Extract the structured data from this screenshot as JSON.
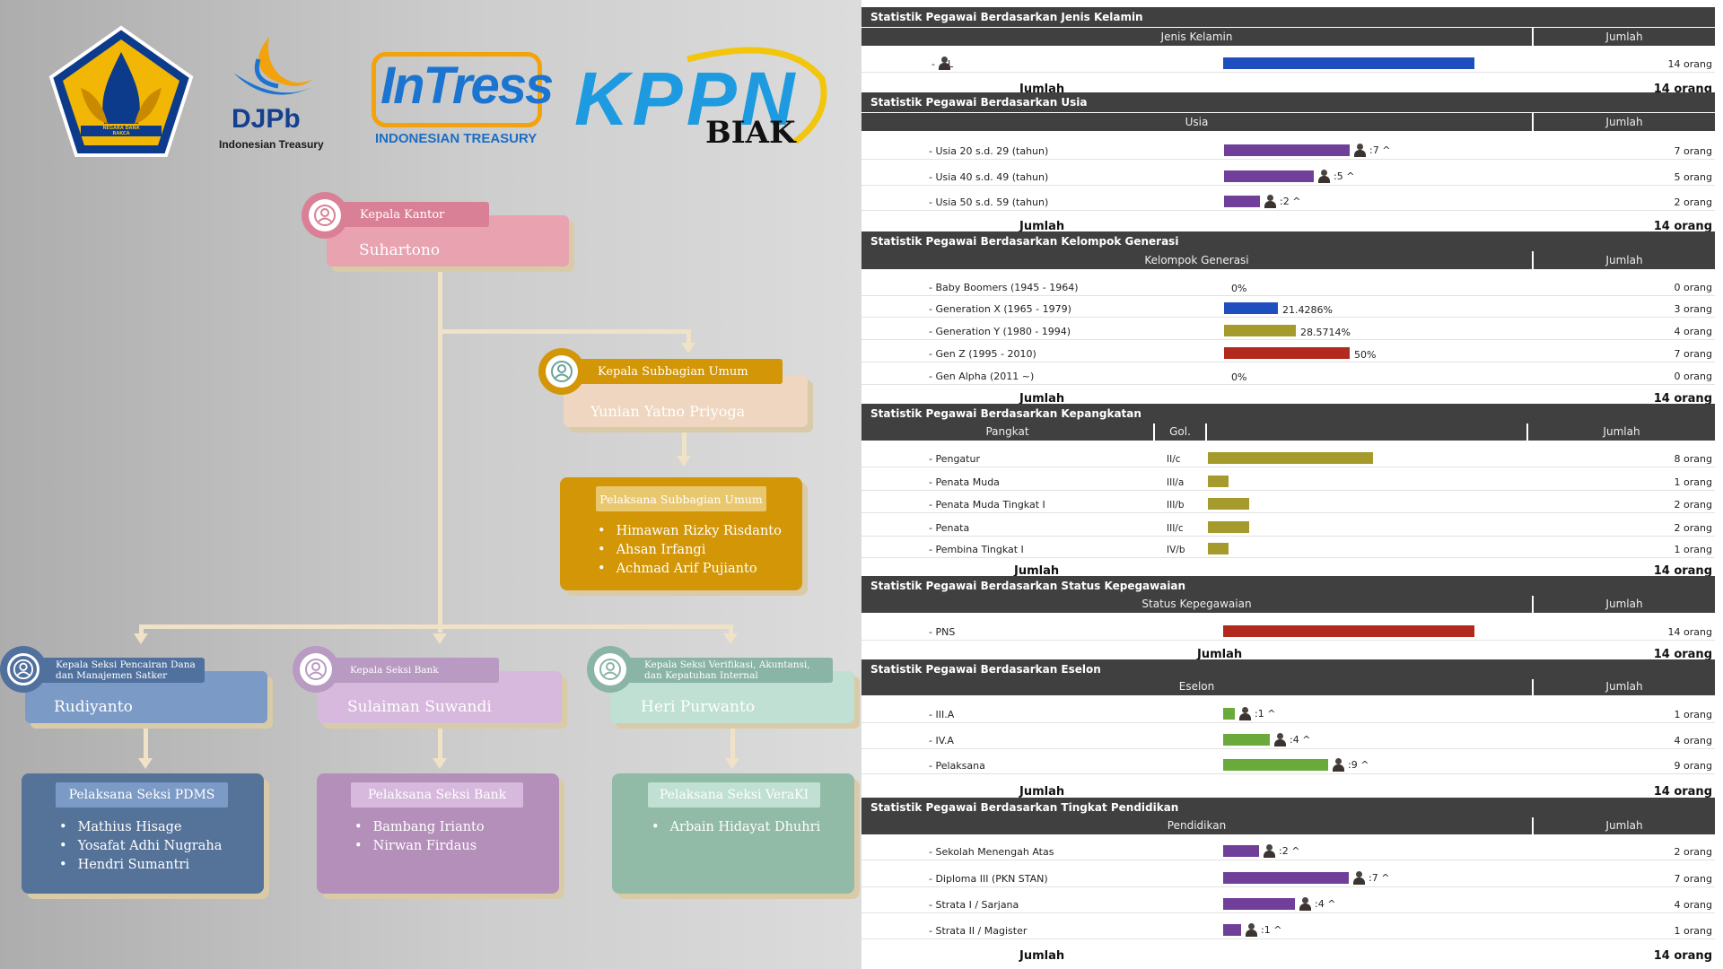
{
  "org": {
    "logos": {
      "kemenkeu_motto": "NEGARA DANA RAKCA",
      "djpb_name": "DJPb",
      "djpb_sub": "Indonesian Treasury",
      "intress_name": "InTress",
      "intress_sub": "INDONESIAN TREASURY",
      "kppn_name": "KPPN",
      "kppn_sub": "BIAK"
    },
    "kepala_kantor": {
      "title": "Kepala Kantor",
      "name": "Suhartono"
    },
    "kasubag": {
      "title": "Kepala Subbagian Umum",
      "name": "Yunian Yatno Priyoga"
    },
    "pelaksana_umum": {
      "title": "Pelaksana Subbagian Umum",
      "members": [
        "Himawan Rizky Risdanto",
        "Ahsan Irfangi",
        "Achmad Arif Pujianto"
      ]
    },
    "kasi_pdms": {
      "title_line1": "Kepala Seksi Pencairan Dana",
      "title_line2": "dan Manajemen Satker",
      "name": "Rudiyanto"
    },
    "kasi_bank": {
      "title": "Kepala Seksi Bank",
      "name": "Sulaiman Suwandi"
    },
    "kasi_veraki": {
      "title_line1": "Kepala Seksi Verifikasi, Akuntansi,",
      "title_line2": "dan Kepatuhan Internal",
      "name": "Heri Purwanto"
    },
    "pelaksana_pdms": {
      "title": "Pelaksana Seksi PDMS",
      "members": [
        "Mathius Hisage",
        "Yosafat Adhi Nugraha",
        "Hendri Sumantri"
      ]
    },
    "pelaksana_bank": {
      "title": "Pelaksana Seksi Bank",
      "members": [
        "Bambang Irianto",
        "Nirwan Firdaus"
      ]
    },
    "pelaksana_veraki": {
      "title": "Pelaksana Seksi VeraKI",
      "members": [
        "Arbain Hidayat Dhuhri"
      ]
    },
    "colors": {
      "kepala_kantor": "#e8a2b0",
      "kasubag": "#eed6c0",
      "pelaksana_umum": "#d39606",
      "pdms": "#7b9ac5",
      "bank": "#d7b9dd",
      "veraki": "#bfe0d3"
    }
  },
  "stats": {
    "jenis_kelamin": {
      "title": "Statistik Pegawai Berdasarkan Jenis Kelamin",
      "col1": "Jenis Kelamin",
      "col2": "Jumlah",
      "rows": [
        {
          "label": "-    L",
          "count": 14,
          "value": "14 orang",
          "color": "#1f4fbf"
        }
      ],
      "total_label": "Jumlah",
      "total": "14 orang"
    },
    "usia": {
      "title": "Statistik Pegawai Berdasarkan Usia",
      "col1": "Usia",
      "col2": "Jumlah",
      "rows": [
        {
          "label": "- Usia 20 s.d. 29 (tahun)",
          "count": 7,
          "note": ":7 ^",
          "value": "7 orang",
          "color": "#6f3f9a"
        },
        {
          "label": "- Usia 40 s.d. 49 (tahun)",
          "count": 5,
          "note": ":5 ^",
          "value": "5 orang",
          "color": "#6f3f9a"
        },
        {
          "label": "- Usia 50 s.d. 59 (tahun)",
          "count": 2,
          "note": ":2 ^",
          "value": "2 orang",
          "color": "#6f3f9a"
        }
      ],
      "total_label": "Jumlah",
      "total": "14 orang"
    },
    "generasi": {
      "title": "Statistik Pegawai Berdasarkan Kelompok Generasi",
      "col1": "Kelompok Generasi",
      "col2": "Jumlah",
      "rows": [
        {
          "label": "- Baby Boomers (1945 - 1964)",
          "count": 0,
          "note": "0%",
          "value": "0 orang",
          "color": "#888888"
        },
        {
          "label": "- Generation X (1965 - 1979)",
          "count": 3,
          "note": "21.4286%",
          "value": "3 orang",
          "color": "#1f4fbf"
        },
        {
          "label": "- Generation Y (1980 - 1994)",
          "count": 4,
          "note": "28.5714%",
          "value": "4 orang",
          "color": "#a59a2c"
        },
        {
          "label": "- Gen Z (1995 - 2010)",
          "count": 7,
          "note": "50%",
          "value": "7 orang",
          "color": "#b22a1e"
        },
        {
          "label": "- Gen Alpha (2011 ~)",
          "count": 0,
          "note": "0%",
          "value": "0 orang",
          "color": "#888888"
        }
      ],
      "total_label": "Jumlah",
      "total": "14 orang"
    },
    "pangkat": {
      "title": "Statistik Pegawai Berdasarkan Kepangkatan",
      "col1": "Pangkat",
      "col_gol": "Gol.",
      "col2": "Jumlah",
      "rows": [
        {
          "label": "- Pengatur",
          "gol": "II/c",
          "count": 8,
          "value": "8 orang",
          "color": "#a59a2c"
        },
        {
          "label": "- Penata Muda",
          "gol": "III/a",
          "count": 1,
          "value": "1 orang",
          "color": "#a59a2c"
        },
        {
          "label": "- Penata Muda Tingkat I",
          "gol": "III/b",
          "count": 2,
          "value": "2 orang",
          "color": "#a59a2c"
        },
        {
          "label": "- Penata",
          "gol": "III/c",
          "count": 2,
          "value": "2 orang",
          "color": "#a59a2c"
        },
        {
          "label": "- Pembina Tingkat I",
          "gol": "IV/b",
          "count": 1,
          "value": "1 orang",
          "color": "#a59a2c"
        }
      ],
      "total_label": "Jumlah",
      "total": "14 orang"
    },
    "status": {
      "title": "Statistik Pegawai Berdasarkan Status Kepegawaian",
      "col1": "Status Kepegawaian",
      "col2": "Jumlah",
      "rows": [
        {
          "label": "- PNS",
          "count": 14,
          "value": "14 orang",
          "color": "#b22a1e"
        }
      ],
      "total_label": "Jumlah",
      "total": "14 orang"
    },
    "eselon": {
      "title": "Statistik Pegawai Berdasarkan Eselon",
      "col1": "Eselon",
      "col2": "Jumlah",
      "rows": [
        {
          "label": "- III.A",
          "count": 1,
          "note": ":1 ^",
          "value": "1 orang",
          "color": "#6aaa3a"
        },
        {
          "label": "- IV.A",
          "count": 4,
          "note": ":4 ^",
          "value": "4 orang",
          "color": "#6aaa3a"
        },
        {
          "label": "- Pelaksana",
          "count": 9,
          "note": ":9 ^",
          "value": "9 orang",
          "color": "#6aaa3a"
        }
      ],
      "total_label": "Jumlah",
      "total": "14 orang"
    },
    "pendidikan": {
      "title": "Statistik Pegawai Berdasarkan Tingkat Pendidikan",
      "col1": "Pendidikan",
      "col2": "Jumlah",
      "rows": [
        {
          "label": "- Sekolah Menengah Atas",
          "count": 2,
          "note": ":2 ^",
          "value": "2 orang",
          "color": "#6f3f9a"
        },
        {
          "label": "- Diploma III (PKN STAN)",
          "count": 7,
          "note": ":7 ^",
          "value": "7 orang",
          "color": "#6f3f9a"
        },
        {
          "label": "- Strata I / Sarjana",
          "count": 4,
          "note": ":4 ^",
          "value": "4 orang",
          "color": "#6f3f9a"
        },
        {
          "label": "- Strata II / Magister",
          "count": 1,
          "note": ":1 ^",
          "value": "1 orang",
          "color": "#6f3f9a"
        }
      ],
      "total_label": "Jumlah",
      "total": "14 orang"
    }
  }
}
